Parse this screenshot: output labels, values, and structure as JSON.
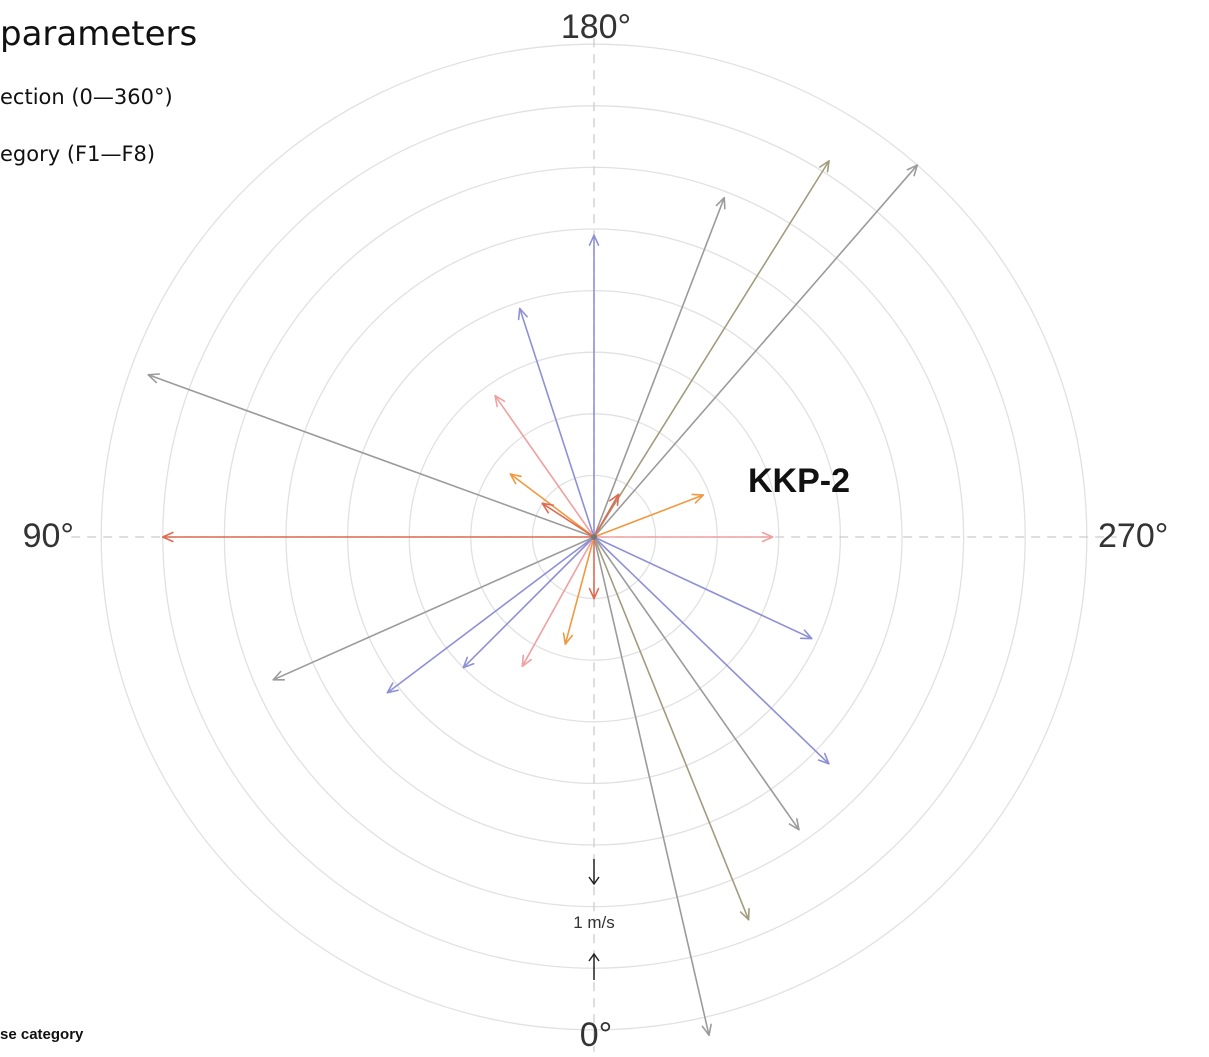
{
  "header": {
    "title": "parameters",
    "line1": "ection (0—360°)",
    "line2": "egory (F1—F8)",
    "footer": "se category"
  },
  "chart_data": {
    "type": "polar-vector",
    "station_label": "KKP-2",
    "direction_labels": [
      "0°",
      "90°",
      "180°",
      "270°"
    ],
    "scale_label": "1 m/s",
    "ring_spacing_ms": 1,
    "rmax_ms": 8,
    "colors": {
      "ring": "#e1e1e1",
      "axis": "#cccccc",
      "gray": "#9b9b9b",
      "olive": "#a39b7e",
      "blue": "#8f8fd8",
      "pink": "#f0a0a0",
      "orange": "#ef9a40",
      "red": "#e06a50"
    },
    "vectors": [
      {
        "dir_deg": 180,
        "speed_ms": 4.9,
        "color": "blue"
      },
      {
        "dir_deg": 201,
        "speed_ms": 5.9,
        "color": "gray"
      },
      {
        "dir_deg": 212,
        "speed_ms": 7.2,
        "color": "olive"
      },
      {
        "dir_deg": 221,
        "speed_ms": 8.0,
        "color": "gray"
      },
      {
        "dir_deg": 162,
        "speed_ms": 3.9,
        "color": "blue"
      },
      {
        "dir_deg": 145,
        "speed_ms": 2.8,
        "color": "pink"
      },
      {
        "dir_deg": 127,
        "speed_ms": 1.7,
        "color": "orange"
      },
      {
        "dir_deg": 110,
        "speed_ms": 7.7,
        "color": "gray"
      },
      {
        "dir_deg": 90,
        "speed_ms": 7.0,
        "color": "red"
      },
      {
        "dir_deg": 123,
        "speed_ms": 1.0,
        "color": "red"
      },
      {
        "dir_deg": 210,
        "speed_ms": 0.8,
        "color": "red"
      },
      {
        "dir_deg": 249,
        "speed_ms": 1.9,
        "color": "orange"
      },
      {
        "dir_deg": 270,
        "speed_ms": 2.9,
        "color": "pink"
      },
      {
        "dir_deg": 295,
        "speed_ms": 3.9,
        "color": "blue"
      },
      {
        "dir_deg": 314,
        "speed_ms": 5.3,
        "color": "blue"
      },
      {
        "dir_deg": 325,
        "speed_ms": 5.8,
        "color": "gray"
      },
      {
        "dir_deg": 338,
        "speed_ms": 6.7,
        "color": "olive"
      },
      {
        "dir_deg": 347,
        "speed_ms": 8.3,
        "color": "gray"
      },
      {
        "dir_deg": 0,
        "speed_ms": 1.0,
        "color": "red"
      },
      {
        "dir_deg": 15,
        "speed_ms": 1.8,
        "color": "orange"
      },
      {
        "dir_deg": 29,
        "speed_ms": 2.4,
        "color": "pink"
      },
      {
        "dir_deg": 45,
        "speed_ms": 3.0,
        "color": "blue"
      },
      {
        "dir_deg": 53,
        "speed_ms": 4.2,
        "color": "blue"
      },
      {
        "dir_deg": 66,
        "speed_ms": 5.7,
        "color": "gray"
      }
    ]
  }
}
